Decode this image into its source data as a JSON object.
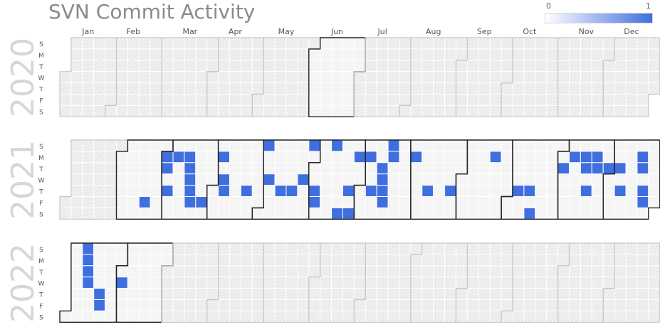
{
  "title": "SVN Commit Activity",
  "legend": {
    "min_label": "0",
    "max_label": "1",
    "low_color": "#ffffff",
    "high_color": "#3f6fdf"
  },
  "colors": {
    "active": "#3f6fdf",
    "empty_day": "#f2f2f2",
    "in_range_day": "#f5f5f5",
    "grid_line": "#ffffff",
    "range_border": "#222222",
    "month_border_inactive": "#c8c8c8",
    "year_label": "#d6d6d6"
  },
  "chart_data": {
    "type": "heatmap",
    "title": "SVN Commit Activity",
    "value_range": [
      0,
      1
    ],
    "month_labels": [
      "Jan",
      "Feb",
      "Mar",
      "Apr",
      "May",
      "Jun",
      "Jul",
      "Aug",
      "Sep",
      "Oct",
      "Nov",
      "Dec"
    ],
    "weekday_labels": [
      "S",
      "M",
      "T",
      "W",
      "T",
      "F",
      "S"
    ],
    "years": [
      {
        "year": "2020",
        "data_range": [
          "2020-06-01",
          "2020-06-30"
        ],
        "commit_days": []
      },
      {
        "year": "2021",
        "data_range": [
          "2021-02-01",
          "2021-12-31"
        ],
        "commit_days": [
          "2021-02-19",
          "2021-03-01",
          "2021-03-02",
          "2021-03-04",
          "2021-03-08",
          "2021-03-15",
          "2021-03-16",
          "2021-03-17",
          "2021-03-18",
          "2021-03-19",
          "2021-03-26",
          "2021-04-05",
          "2021-04-07",
          "2021-04-08",
          "2021-04-22",
          "2021-05-02",
          "2021-05-05",
          "2021-05-13",
          "2021-05-20",
          "2021-05-26",
          "2021-05-30",
          "2021-06-03",
          "2021-06-04",
          "2021-06-13",
          "2021-06-19",
          "2021-06-24",
          "2021-06-26",
          "2021-06-28",
          "2021-07-05",
          "2021-07-08",
          "2021-07-13",
          "2021-07-14",
          "2021-07-15",
          "2021-07-16",
          "2021-07-18",
          "2021-07-19",
          "2021-08-02",
          "2021-08-12",
          "2021-08-26",
          "2021-09-20",
          "2021-10-07",
          "2021-10-14",
          "2021-10-16",
          "2021-11-02",
          "2021-11-08",
          "2021-11-15",
          "2021-11-16",
          "2021-11-18",
          "2021-11-22",
          "2021-11-23",
          "2021-11-30",
          "2021-12-07",
          "2021-12-09",
          "2021-12-20",
          "2021-12-21",
          "2021-12-23",
          "2021-12-24"
        ]
      },
      {
        "year": "2022",
        "data_range": [
          "2022-01-01",
          "2022-02-28"
        ],
        "commit_days": [
          "2022-01-09",
          "2022-01-10",
          "2022-01-11",
          "2022-01-12",
          "2022-01-20",
          "2022-01-21",
          "2022-02-02"
        ]
      }
    ]
  }
}
